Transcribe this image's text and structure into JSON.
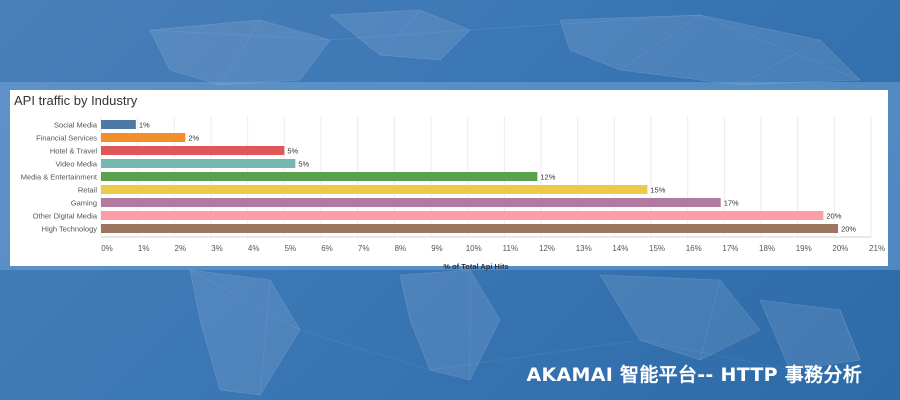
{
  "chart_data": {
    "type": "bar",
    "orientation": "horizontal",
    "title": "API traffic by Industry",
    "xlabel": "% of Total Api Hits",
    "ylabel": "",
    "xlim": [
      0,
      21
    ],
    "xticks": [
      "0%",
      "1%",
      "2%",
      "3%",
      "4%",
      "5%",
      "6%",
      "7%",
      "8%",
      "9%",
      "10%",
      "11%",
      "12%",
      "13%",
      "14%",
      "15%",
      "16%",
      "17%",
      "18%",
      "19%",
      "20%",
      "21%"
    ],
    "categories": [
      "Social Media",
      "Financial Services",
      "Hotel & Travel",
      "Video Media",
      "Media & Entertainment",
      "Retail",
      "Gaming",
      "Other Digital Media",
      "High Technology"
    ],
    "values": [
      1,
      2,
      5,
      5,
      12,
      15,
      17,
      20,
      20
    ],
    "plotted_values": [
      0.95,
      2.3,
      5.0,
      5.3,
      11.9,
      14.9,
      16.9,
      19.7,
      20.1
    ],
    "labels": [
      "1%",
      "2%",
      "5%",
      "5%",
      "12%",
      "15%",
      "17%",
      "20%",
      "20%"
    ],
    "colors": [
      "#4e79a7",
      "#f28e2b",
      "#e15759",
      "#76b7b2",
      "#59a14f",
      "#edc948",
      "#b07aa1",
      "#ff9da7",
      "#9c755f"
    ]
  },
  "footer": {
    "text": "AKAMAI 智能平台-- HTTP 事務分析"
  }
}
